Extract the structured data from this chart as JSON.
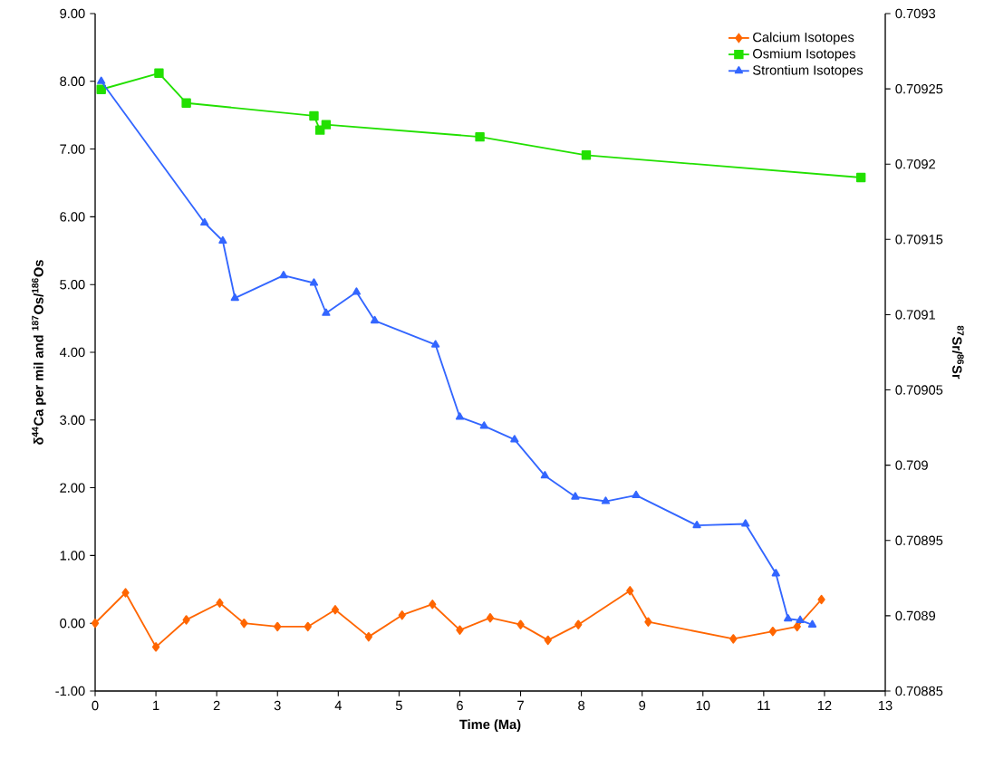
{
  "chart_data": {
    "type": "line",
    "xlabel": "Time (Ma)",
    "ylabel": "δ$^{44}$Ca per mil and $^{187}$Os/$^{186}$Os",
    "y2label": "$^{87}$Sr/$^{86}$Sr",
    "xlim": [
      0,
      13
    ],
    "xticks": [
      0,
      1,
      2,
      3,
      4,
      5,
      6,
      7,
      8,
      9,
      10,
      11,
      12,
      13
    ],
    "ylim": [
      -1,
      9
    ],
    "yticks": [
      {
        "value": -1,
        "label": "-1.00"
      },
      {
        "value": 0,
        "label": "0.00"
      },
      {
        "value": 1,
        "label": "1.00"
      },
      {
        "value": 2,
        "label": "2.00"
      },
      {
        "value": 3,
        "label": "3.00"
      },
      {
        "value": 4,
        "label": "4.00"
      },
      {
        "value": 5,
        "label": "5.00"
      },
      {
        "value": 6,
        "label": "6.00"
      },
      {
        "value": 7,
        "label": "7.00"
      },
      {
        "value": 8,
        "label": "8.00"
      },
      {
        "value": 9,
        "label": "9.00"
      }
    ],
    "y2lim": [
      0.70885,
      0.7093
    ],
    "y2ticks": [
      0.70885,
      0.7089,
      0.70895,
      0.709,
      0.70905,
      0.7091,
      0.70915,
      0.7092,
      0.70925,
      0.7093
    ],
    "legend": "top right",
    "grid": false,
    "line_style": "solid",
    "series": [
      {
        "name": "Calcium Isotopes",
        "color": "#ff6600",
        "marker": "diamond",
        "x": [
          0,
          0.5,
          1.0,
          1.5,
          2.05,
          2.45,
          3.0,
          3.5,
          3.95,
          4.5,
          5.05,
          5.55,
          6.0,
          6.5,
          7.0,
          7.45,
          7.95,
          8.8,
          9.1,
          10.5,
          11.15,
          11.55,
          11.95
        ],
        "values": [
          0.0,
          0.45,
          -0.35,
          0.05,
          0.3,
          0.0,
          -0.05,
          -0.05,
          0.2,
          -0.2,
          0.12,
          0.28,
          -0.1,
          0.08,
          -0.02,
          -0.25,
          -0.02,
          0.48,
          0.02,
          -0.23,
          -0.12,
          -0.05,
          0.35
        ]
      },
      {
        "name": "Osmium Isotopes",
        "color": "#22e000",
        "marker": "square",
        "x": [
          0.1,
          1.05,
          1.5,
          3.6,
          3.7,
          3.8,
          6.33,
          8.08,
          12.6
        ],
        "values": [
          7.88,
          8.12,
          7.68,
          7.49,
          7.28,
          7.36,
          7.18,
          6.91,
          6.58
        ]
      },
      {
        "name": "Strontium Isotopes",
        "color": "#3366ff",
        "marker": "triangle",
        "axis": "y2",
        "x": [
          0.1,
          1.8,
          2.1,
          2.3,
          3.1,
          3.6,
          3.8,
          4.3,
          4.6,
          5.6,
          6.0,
          6.4,
          6.9,
          7.4,
          7.9,
          8.4,
          8.9,
          9.9,
          10.7,
          11.2,
          11.4,
          11.6,
          11.8
        ],
        "values": [
          0.709255,
          0.709161,
          0.709149,
          0.709111,
          0.709126,
          0.709121,
          0.709101,
          0.709115,
          0.709096,
          0.70908,
          0.709032,
          0.709026,
          0.709017,
          0.708993,
          0.708979,
          0.708976,
          0.70898,
          0.70896,
          0.708961,
          0.708928,
          0.708898,
          0.708897,
          0.708894
        ]
      }
    ]
  }
}
